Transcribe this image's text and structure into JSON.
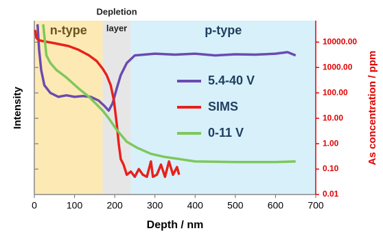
{
  "chart_data": {
    "type": "line",
    "x_label": "Depth / nm",
    "y_label": "Intensity",
    "y2_label": "As concentration / ppm",
    "xlim": [
      0,
      700
    ],
    "xticks": [
      0,
      100,
      200,
      300,
      400,
      500,
      600,
      700
    ],
    "ylim": [
      0.01,
      70000
    ],
    "y2lim": [
      0.01,
      70000
    ],
    "y2ticks": [
      {
        "value": 0.01,
        "label": "0.01"
      },
      {
        "value": 0.1,
        "label": "0.10"
      },
      {
        "value": 1,
        "label": "1.00"
      },
      {
        "value": 10,
        "label": "10.00"
      },
      {
        "value": 100,
        "label": "100.00"
      },
      {
        "value": 1000,
        "label": "1000.00"
      },
      {
        "value": 10000,
        "label": "10000.00"
      }
    ],
    "log_scale": true,
    "y2_color": "#e00000",
    "legend": "right",
    "regions": [
      {
        "label_lines": [
          "n-type"
        ],
        "start": 0,
        "end": 170,
        "color": "#fde9b4"
      },
      {
        "label_lines": [
          "Depletion",
          "layer"
        ],
        "start": 170,
        "end": 240,
        "color": "#e6e6e6"
      },
      {
        "label_lines": [
          "p-type"
        ],
        "start": 240,
        "end": 700,
        "color": "#d7f0fa"
      }
    ],
    "series": [
      {
        "name": "5.4-40 V",
        "color": "#6a4bb0",
        "axis": "y",
        "x": [
          8,
          12,
          17,
          25,
          40,
          60,
          80,
          100,
          120,
          140,
          160,
          175,
          185,
          195,
          205,
          215,
          230,
          250,
          300,
          350,
          400,
          450,
          500,
          550,
          600,
          630,
          650
        ],
        "values": [
          50000,
          5000,
          800,
          200,
          100,
          70,
          80,
          70,
          75,
          70,
          50,
          30,
          20,
          40,
          150,
          500,
          1500,
          3000,
          3500,
          3200,
          3500,
          3000,
          3300,
          3200,
          3500,
          4000,
          3000
        ]
      },
      {
        "name": "SIMS",
        "color": "#e8211b",
        "axis": "y2",
        "x": [
          2,
          5,
          10,
          20,
          50,
          85,
          110,
          136,
          155,
          170,
          180,
          190,
          198,
          205,
          210,
          215,
          222,
          230,
          240,
          250,
          260,
          270,
          280,
          290,
          295,
          305,
          315,
          325,
          335,
          345,
          355,
          360
        ],
        "values": [
          30000,
          15000,
          12000,
          11000,
          9000,
          7000,
          5000,
          3000,
          1800,
          900,
          500,
          200,
          50,
          6,
          1,
          0.25,
          0.15,
          0.06,
          0.08,
          0.05,
          0.1,
          0.06,
          0.05,
          0.2,
          0.05,
          0.06,
          0.15,
          0.05,
          0.2,
          0.06,
          0.12,
          0.06
        ]
      },
      {
        "name": "0-11 V",
        "color": "#7dc85a",
        "axis": "y",
        "x": [
          22,
          30,
          40,
          55,
          80,
          110,
          136,
          155,
          170,
          185,
          205,
          230,
          255,
          290,
          325,
          360,
          400,
          500,
          600,
          650
        ],
        "values": [
          50000,
          3000,
          1500,
          800,
          400,
          150,
          70,
          35,
          20,
          10,
          3.5,
          1.2,
          0.7,
          0.4,
          0.3,
          0.25,
          0.2,
          0.19,
          0.19,
          0.2
        ]
      }
    ]
  }
}
